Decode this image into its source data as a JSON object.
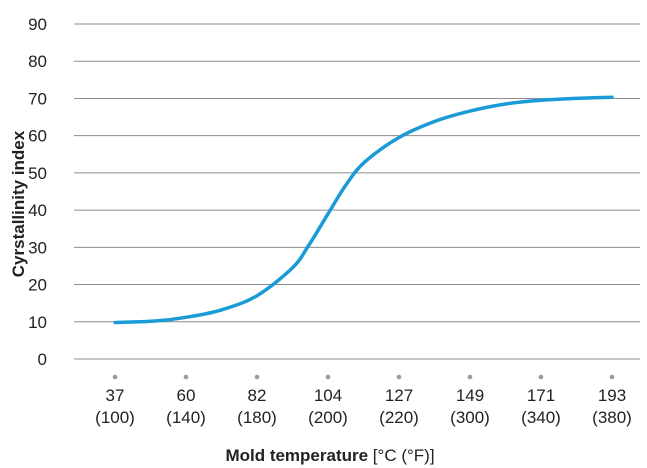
{
  "chart_data": {
    "type": "line",
    "ylabel": "Cyrstallinity index",
    "xlabel_bold": "Mold temperature",
    "xlabel_unit": " [°C (°F)]",
    "ylim": [
      0,
      90
    ],
    "yticks": [
      "0",
      "10",
      "20",
      "30",
      "40",
      "50",
      "60",
      "70",
      "80",
      "90"
    ],
    "grid": true,
    "categories": [
      {
        "c": "37",
        "f": "(100)"
      },
      {
        "c": "60",
        "f": "(140)"
      },
      {
        "c": "82",
        "f": "(180)"
      },
      {
        "c": "104",
        "f": "(200)"
      },
      {
        "c": "127",
        "f": "(220)"
      },
      {
        "c": "149",
        "f": "(300)"
      },
      {
        "c": "171",
        "f": "(340)"
      },
      {
        "c": "193",
        "f": "(380)"
      }
    ],
    "series": [
      {
        "color": "#1a9ad6",
        "points": [
          {
            "x": 37,
            "y": 9.8
          },
          {
            "x": 50,
            "y": 10.2
          },
          {
            "x": 60,
            "y": 11.2
          },
          {
            "x": 71,
            "y": 13.2
          },
          {
            "x": 82,
            "y": 17.0
          },
          {
            "x": 93,
            "y": 24.5
          },
          {
            "x": 98,
            "y": 30.5
          },
          {
            "x": 104,
            "y": 39.0
          },
          {
            "x": 110,
            "y": 47.0
          },
          {
            "x": 116,
            "y": 53.0
          },
          {
            "x": 127,
            "y": 59.5
          },
          {
            "x": 138,
            "y": 63.8
          },
          {
            "x": 149,
            "y": 66.6
          },
          {
            "x": 160,
            "y": 68.5
          },
          {
            "x": 171,
            "y": 69.5
          },
          {
            "x": 182,
            "y": 70.0
          },
          {
            "x": 193,
            "y": 70.3
          }
        ]
      }
    ]
  }
}
